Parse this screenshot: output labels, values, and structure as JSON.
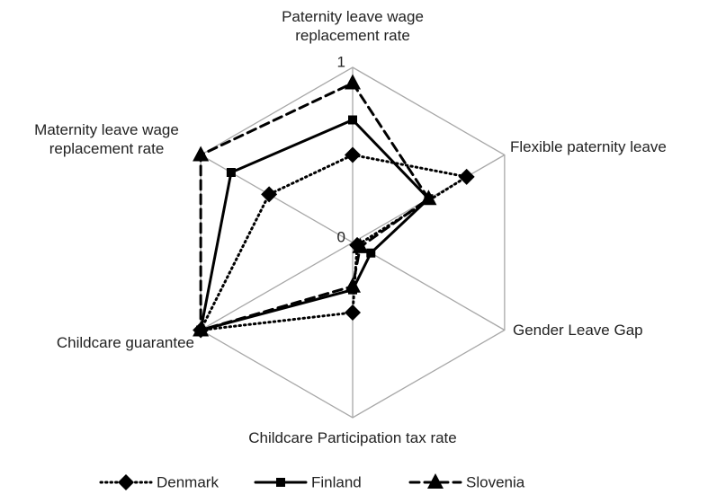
{
  "chart_data": {
    "type": "radar",
    "categories": [
      "Paternity leave wage replacement rate",
      "Flexible paternity leave",
      "Gender Leave Gap",
      "Childcare Participation tax rate",
      "Childcare guarantee",
      "Maternity leave wage replacement rate"
    ],
    "rlim": [
      0,
      1
    ],
    "rticks": [
      0,
      1
    ],
    "grid": true,
    "series": [
      {
        "name": "Denmark",
        "color": "#000000",
        "line_style": "dotted",
        "marker": "diamond",
        "values": [
          0.5,
          0.75,
          0.03,
          0.4,
          1,
          0.55
        ]
      },
      {
        "name": "Finland",
        "color": "#000000",
        "line_style": "solid",
        "marker": "square",
        "values": [
          0.7,
          0.5,
          0.12,
          0.27,
          1,
          0.8
        ]
      },
      {
        "name": "Slovenia",
        "color": "#000000",
        "line_style": "dashed",
        "marker": "triangle",
        "values": [
          0.91,
          0.5,
          0.05,
          0.25,
          1,
          1
        ]
      }
    ]
  }
}
